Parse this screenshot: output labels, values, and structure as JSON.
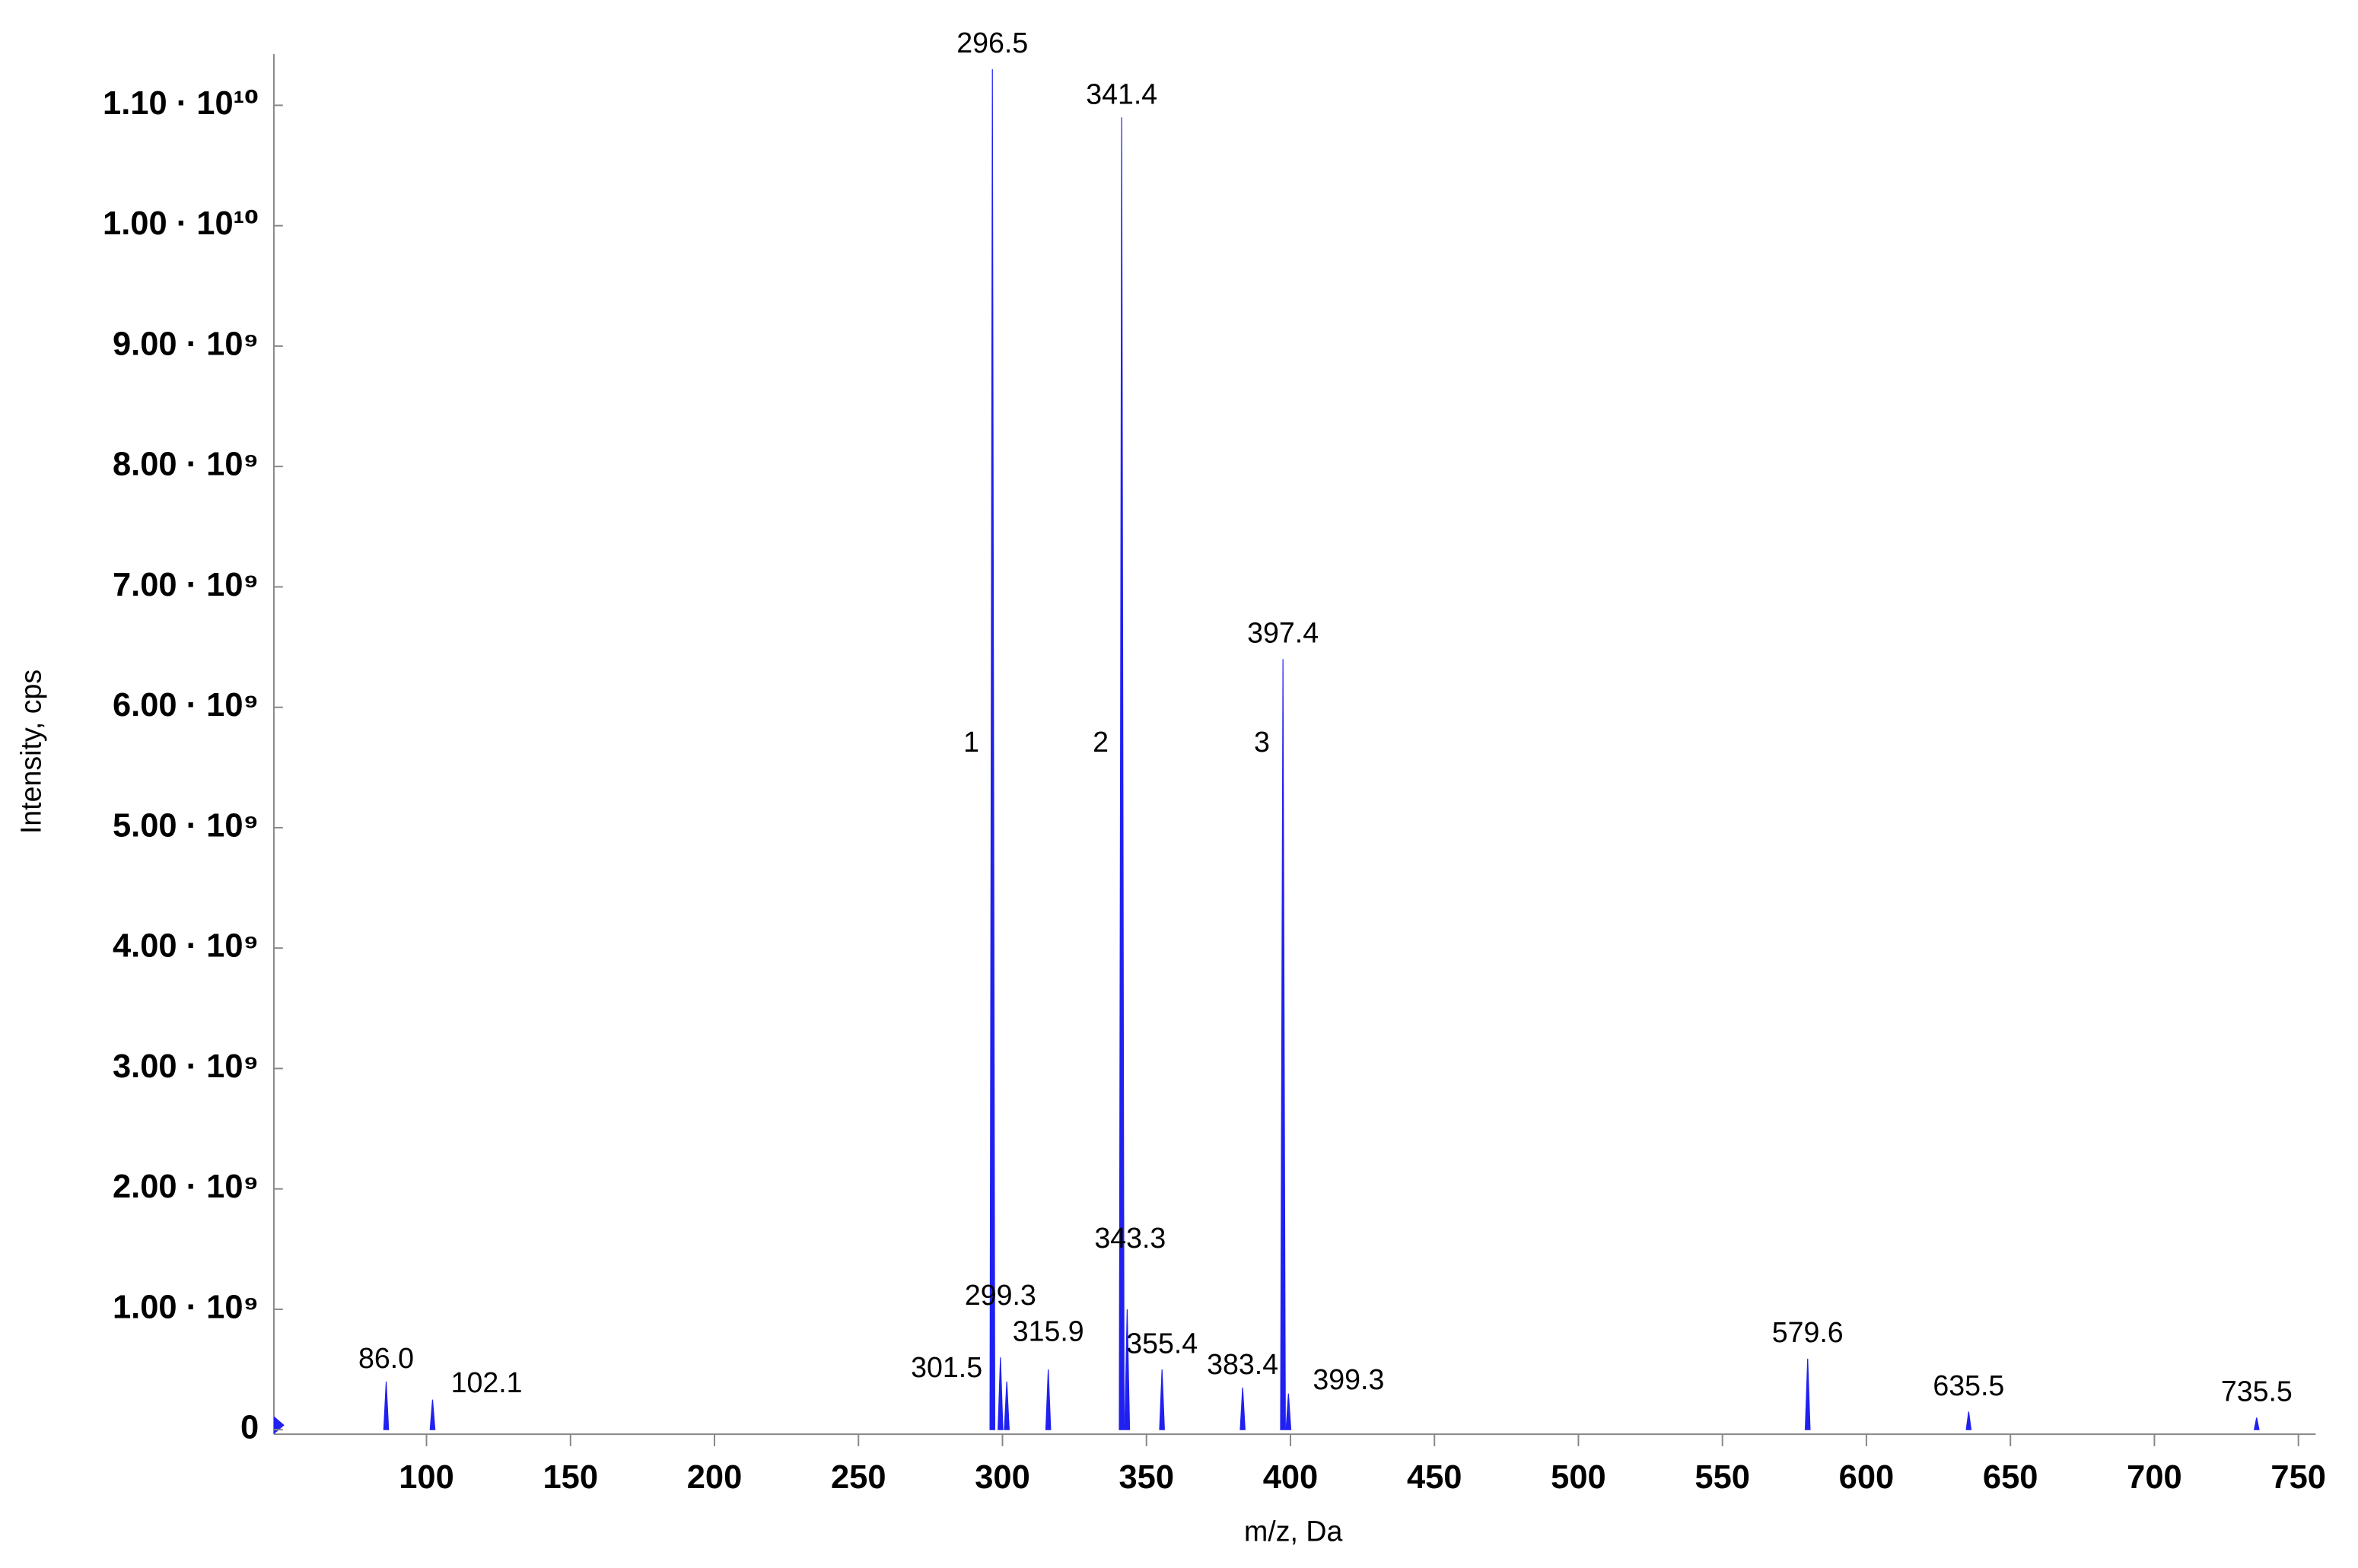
{
  "chart_data": {
    "type": "spectrum",
    "x_label": "m/z, Da",
    "y_label": "Intensity, cps",
    "x": [
      86.0,
      102.1,
      296.5,
      299.3,
      301.5,
      315.9,
      341.4,
      343.3,
      355.4,
      383.4,
      397.4,
      399.3,
      579.6,
      635.5,
      735.5
    ],
    "peak_labels": [
      "86.0",
      "102.1",
      "296.5",
      "299.3",
      "301.5",
      "315.9",
      "341.4",
      "343.3",
      "355.4",
      "383.4",
      "397.4",
      "399.3",
      "579.6",
      "635.5",
      "735.5"
    ],
    "values": [
      400000000,
      250000000,
      11300000000,
      600000000,
      400000000,
      500000000,
      10900000000,
      1000000000,
      500000000,
      350000000,
      6400000000,
      300000000,
      590000000,
      150000000,
      100000000
    ],
    "color": "#2020f0",
    "peak_numbers": [
      "1",
      "2",
      "3"
    ],
    "xlim": [
      47,
      756
    ],
    "ylim": [
      0,
      11400000000
    ],
    "xticks": [
      100,
      150,
      200,
      250,
      300,
      350,
      400,
      450,
      500,
      550,
      600,
      650,
      700,
      750
    ],
    "yticks": [
      0,
      {
        "value": 1000000000,
        "label": "1.00 · 10⁹"
      },
      {
        "value": 2000000000,
        "label": "2.00 · 10⁹"
      },
      {
        "value": 3000000000,
        "label": "3.00 · 10⁹"
      },
      {
        "value": 4000000000,
        "label": "4.00 · 10⁹"
      },
      {
        "value": 5000000000,
        "label": "5.00 · 10⁹"
      },
      {
        "value": 6000000000,
        "label": "6.00 · 10⁹"
      },
      {
        "value": 7000000000,
        "label": "7.00 · 10⁹"
      },
      {
        "value": 8000000000,
        "label": "8.00 · 10⁹"
      },
      {
        "value": 9000000000,
        "label": "9.00 · 10⁹"
      },
      {
        "value": 10000000000,
        "label": "1.00 · 10¹⁰"
      },
      {
        "value": 11000000000,
        "label": "1.10 · 10¹⁰"
      }
    ]
  }
}
